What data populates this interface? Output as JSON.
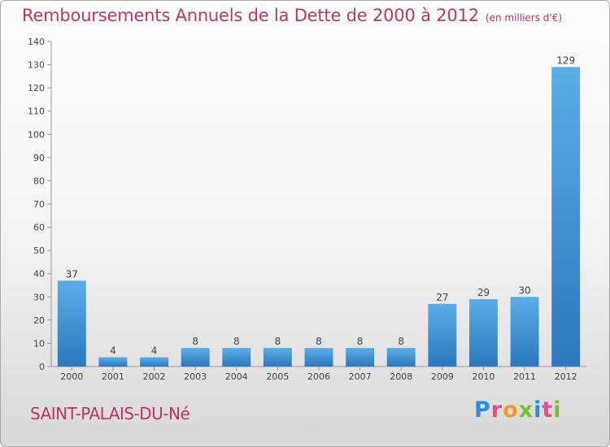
{
  "header": {
    "title": "Remboursements Annuels de la Dette de 2000 à 2012",
    "unit": "(en milliers d'€)"
  },
  "footer": {
    "commune": "SAINT-PALAIS-DU-Né",
    "logo_letters": [
      "P",
      "r",
      "o",
      "x",
      "i",
      "t",
      "i"
    ],
    "logo_colors": [
      "#2a8fd6",
      "#e94b8a",
      "#f59a23",
      "#7bbf2a",
      "#2a8fd6",
      "#e94b8a",
      "#7bbf2a"
    ]
  },
  "chart_data": {
    "type": "bar",
    "title": "Remboursements Annuels de la Dette de 2000 à 2012",
    "xlabel": "",
    "ylabel": "",
    "categories": [
      "2000",
      "2001",
      "2002",
      "2003",
      "2004",
      "2005",
      "2006",
      "2007",
      "2008",
      "2009",
      "2010",
      "2011",
      "2012"
    ],
    "values": [
      37,
      4,
      4,
      8,
      8,
      8,
      8,
      8,
      8,
      27,
      29,
      30,
      129
    ],
    "ylim": [
      0,
      140
    ],
    "yticks": [
      0,
      10,
      20,
      30,
      40,
      50,
      60,
      70,
      80,
      90,
      100,
      110,
      120,
      130,
      140
    ],
    "grid": false,
    "bar_color": "#3a8fd4"
  }
}
